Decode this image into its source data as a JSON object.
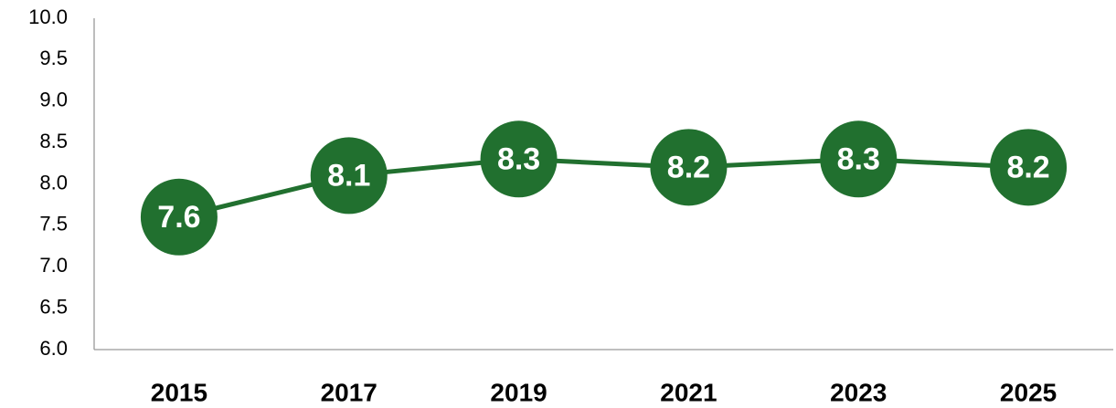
{
  "chart_data": {
    "type": "line",
    "categories": [
      "2015",
      "2017",
      "2019",
      "2021",
      "2023",
      "2025"
    ],
    "values": [
      7.6,
      8.1,
      8.3,
      8.2,
      8.3,
      8.2
    ],
    "color": "#21702f",
    "ylim": [
      6,
      10
    ],
    "yticks": [
      {
        "value": 6,
        "label": "6.0"
      },
      {
        "value": 6.5,
        "label": "6.5"
      },
      {
        "value": 7,
        "label": "7.0"
      },
      {
        "value": 7.5,
        "label": "7.5"
      },
      {
        "value": 8,
        "label": "8.0"
      },
      {
        "value": 8.5,
        "label": "8.5"
      },
      {
        "value": 9,
        "label": "9.0"
      },
      {
        "value": 9.5,
        "label": "9.5"
      },
      {
        "value": 10,
        "label": "10.0"
      }
    ],
    "grid": false
  }
}
